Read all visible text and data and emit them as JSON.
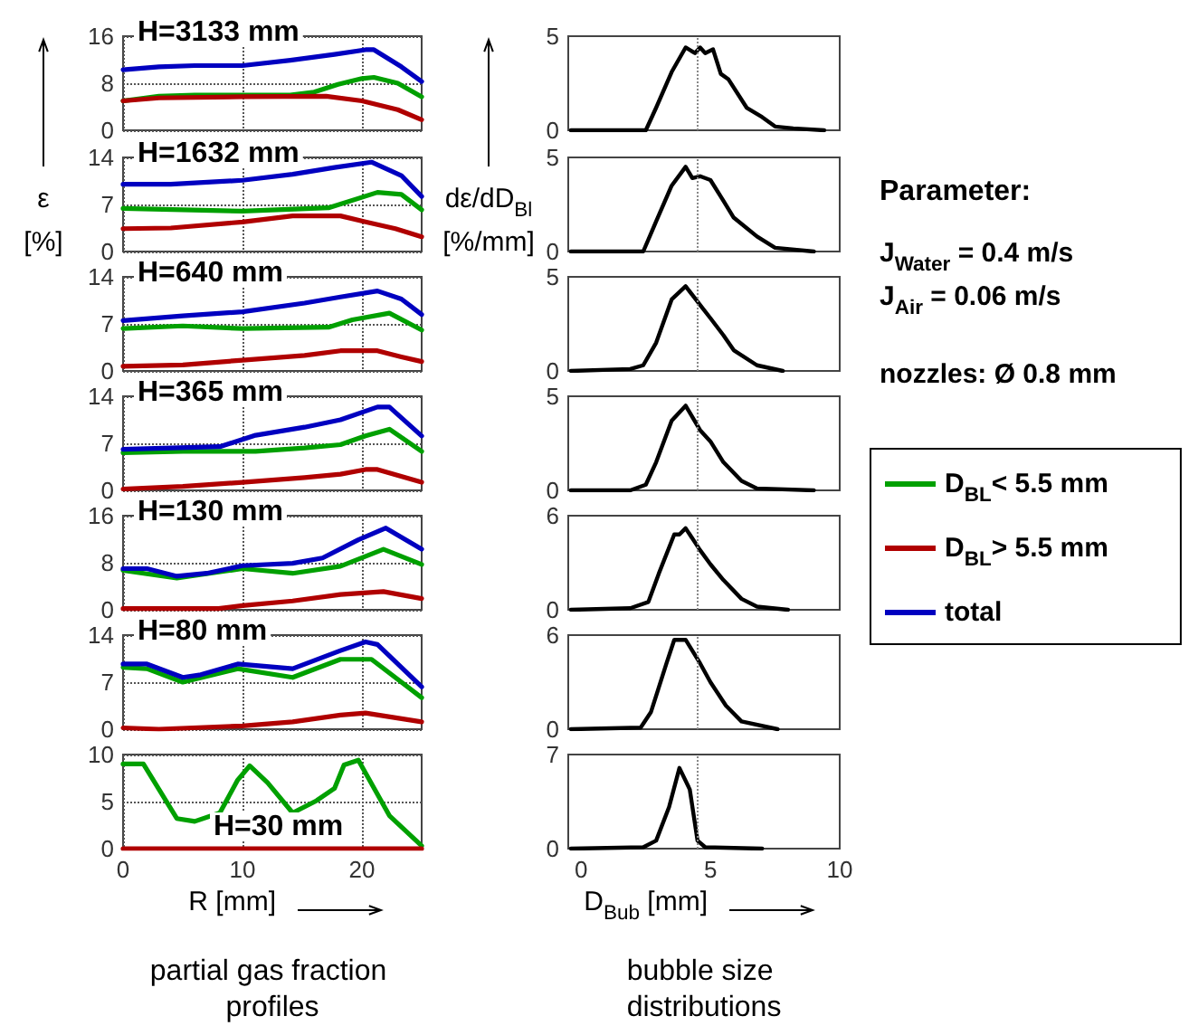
{
  "chart_data": [
    {
      "type": "line",
      "title": "H=3133 mm",
      "ylabel": "ε [%]",
      "xlim": [
        0,
        25
      ],
      "xticks": [
        0,
        10,
        20
      ],
      "ylim": [
        0,
        16
      ],
      "yticks": [
        0,
        8,
        16
      ],
      "grid": true,
      "tick_labels": "y",
      "legend": "right",
      "series": [
        {
          "name": "D$_{BL}$< 5.5 mm",
          "color": "#00a000",
          "x": [
            0,
            3,
            6,
            10,
            14,
            16,
            18,
            20,
            21,
            23,
            25
          ],
          "values": [
            5,
            5.8,
            6,
            6,
            6,
            6.5,
            7.8,
            8.8,
            9,
            8,
            5.7
          ]
        },
        {
          "name": "D$_{BL}$> 5.5 mm",
          "color": "#b00000",
          "x": [
            0,
            3,
            10,
            17,
            20,
            23,
            25
          ],
          "values": [
            5,
            5.5,
            5.7,
            5.8,
            5,
            3.5,
            1.8
          ]
        },
        {
          "name": "total",
          "color": "#0000c0",
          "x": [
            0,
            3,
            6,
            10,
            14,
            17.7,
            20.3,
            21,
            23.3,
            25
          ],
          "values": [
            10.3,
            10.8,
            11,
            11,
            11.9,
            12.9,
            13.7,
            13.7,
            10.8,
            8.3
          ]
        }
      ]
    },
    {
      "type": "line",
      "title": "H=1632 mm",
      "xlim": [
        0,
        25
      ],
      "xticks": [
        0,
        10,
        20
      ],
      "ylim": [
        0,
        14
      ],
      "yticks": [
        0,
        7,
        14
      ],
      "grid": true,
      "tick_labels": "y",
      "series": [
        {
          "name": "D$_{BL}$< 5.5 mm",
          "color": "#00a000",
          "x": [
            0,
            10,
            17.2,
            21.3,
            23.3,
            25
          ],
          "values": [
            6.4,
            6,
            6.5,
            8.8,
            8.5,
            6.2
          ]
        },
        {
          "name": "D$_{BL}$> 5.5 mm",
          "color": "#b00000",
          "x": [
            0,
            4,
            10,
            14.2,
            18.2,
            20.3,
            22.8,
            25
          ],
          "values": [
            3.4,
            3.5,
            4.4,
            5.3,
            5.3,
            4.4,
            3.4,
            2.2
          ]
        },
        {
          "name": "total",
          "color": "#0000c0",
          "x": [
            0,
            4,
            10,
            14.2,
            17.7,
            20.8,
            23.3,
            25
          ],
          "values": [
            10,
            10,
            10.6,
            11.5,
            12.5,
            13.3,
            11.3,
            8.2
          ]
        }
      ]
    },
    {
      "type": "line",
      "title": "H=640 mm",
      "xlim": [
        0,
        25
      ],
      "xticks": [
        0,
        10,
        20
      ],
      "ylim": [
        0,
        14
      ],
      "yticks": [
        0,
        7,
        14
      ],
      "grid": true,
      "tick_labels": "y",
      "series": [
        {
          "name": "D$_{BL}$< 5.5 mm",
          "color": "#00a000",
          "x": [
            0,
            5,
            10,
            17.2,
            19.2,
            22.3,
            25
          ],
          "values": [
            6.3,
            6.7,
            6.3,
            6.5,
            7.6,
            8.6,
            6.1
          ]
        },
        {
          "name": "D$_{BL}$> 5.5 mm",
          "color": "#b00000",
          "x": [
            0,
            5,
            10,
            15.2,
            18.2,
            21.3,
            23.3,
            25
          ],
          "values": [
            0.7,
            0.9,
            1.6,
            2.3,
            3,
            3,
            2.1,
            1.4
          ]
        },
        {
          "name": "total",
          "color": "#0000c0",
          "x": [
            0,
            5,
            10,
            15.2,
            18.2,
            21.3,
            23.3,
            25
          ],
          "values": [
            7.5,
            8.2,
            8.8,
            10.1,
            11,
            11.9,
            10.7,
            8.4
          ]
        }
      ]
    },
    {
      "type": "line",
      "title": "H=365 mm",
      "xlim": [
        0,
        25
      ],
      "xticks": [
        0,
        10,
        20
      ],
      "ylim": [
        0,
        14
      ],
      "yticks": [
        0,
        7,
        14
      ],
      "grid": true,
      "tick_labels": "y",
      "series": [
        {
          "name": "D$_{BL}$< 5.5 mm",
          "color": "#00a000",
          "x": [
            0,
            5,
            11.1,
            15.2,
            18.2,
            20.3,
            22.3,
            25
          ],
          "values": [
            5.6,
            5.8,
            5.8,
            6.3,
            6.8,
            8.1,
            9.1,
            5.8
          ]
        },
        {
          "name": "D$_{BL}$> 5.5 mm",
          "color": "#b00000",
          "x": [
            0,
            5,
            10,
            15.2,
            18.2,
            20.3,
            21.3,
            25
          ],
          "values": [
            0.2,
            0.6,
            1.2,
            1.9,
            2.4,
            3.1,
            3.1,
            1.2
          ]
        },
        {
          "name": "total",
          "color": "#0000c0",
          "x": [
            0,
            8.1,
            11.1,
            15.2,
            18.2,
            21.3,
            22.3,
            25
          ],
          "values": [
            6.1,
            6.5,
            8.2,
            9.4,
            10.5,
            12.4,
            12.4,
            8.1
          ]
        }
      ]
    },
    {
      "type": "line",
      "title": "H=130 mm",
      "xlim": [
        0,
        25
      ],
      "xticks": [
        0,
        10,
        20
      ],
      "ylim": [
        0,
        16
      ],
      "yticks": [
        0,
        8,
        16
      ],
      "grid": true,
      "tick_labels": "y",
      "series": [
        {
          "name": "D$_{BL}$< 5.5 mm",
          "color": "#00a000",
          "x": [
            0,
            4.5,
            10,
            14.2,
            18.2,
            21.8,
            25
          ],
          "values": [
            6.7,
            5.4,
            7,
            6.2,
            7.4,
            10.3,
            7.7
          ]
        },
        {
          "name": "D$_{BL}$> 5.5 mm",
          "color": "#b00000",
          "x": [
            0,
            8,
            10,
            14.2,
            18.2,
            21.8,
            25
          ],
          "values": [
            0.2,
            0.2,
            0.7,
            1.5,
            2.6,
            3.1,
            1.9
          ]
        },
        {
          "name": "total",
          "color": "#0000c0",
          "x": [
            0,
            2,
            4.5,
            7,
            10,
            14.2,
            16.7,
            19.7,
            22,
            25
          ],
          "values": [
            7,
            7,
            5.7,
            6.2,
            7.5,
            7.9,
            8.8,
            11.9,
            13.9,
            10.3
          ]
        }
      ]
    },
    {
      "type": "line",
      "title": "H=80 mm",
      "xlim": [
        0,
        25
      ],
      "xticks": [
        0,
        10,
        20
      ],
      "ylim": [
        0,
        14
      ],
      "yticks": [
        0,
        7,
        14
      ],
      "grid": true,
      "tick_labels": "y",
      "series": [
        {
          "name": "D$_{BL}$< 5.5 mm",
          "color": "#00a000",
          "x": [
            0,
            2,
            5,
            9.6,
            14.2,
            18.2,
            20.8,
            25
          ],
          "values": [
            9.2,
            9,
            7,
            9,
            7.7,
            10.4,
            10.4,
            4.7
          ]
        },
        {
          "name": "D$_{BL}$> 5.5 mm",
          "color": "#b00000",
          "x": [
            0,
            3,
            10,
            14.2,
            18.2,
            20.3,
            25
          ],
          "values": [
            0.2,
            0,
            0.5,
            1.1,
            2.1,
            2.4,
            1.1
          ]
        },
        {
          "name": "total",
          "color": "#0000c0",
          "x": [
            0,
            2,
            5,
            6.5,
            9.6,
            14.2,
            18.2,
            20.3,
            21.3,
            25
          ],
          "values": [
            9.7,
            9.7,
            7.7,
            8.1,
            9.7,
            9,
            11.7,
            13,
            12.6,
            6.3
          ]
        }
      ]
    },
    {
      "type": "line",
      "title": "H=30 mm",
      "xlabel": "R [mm]",
      "annotations": [
        "partial gas fraction profiles"
      ],
      "xlim": [
        0,
        25
      ],
      "xticks": [
        0,
        10,
        20
      ],
      "ylim": [
        0,
        10
      ],
      "yticks": [
        0,
        5,
        10
      ],
      "grid": true,
      "series": [
        {
          "name": "D$_{BL}$< 5.5 mm",
          "color": "#00a000",
          "x": [
            0,
            1.7,
            4.5,
            6,
            8.1,
            9.6,
            10.6,
            12.1,
            14.2,
            16.2,
            17.7,
            18.5,
            19.7,
            22.3,
            25
          ],
          "values": [
            9,
            9,
            3.2,
            2.9,
            3.8,
            7.3,
            8.8,
            7,
            3.8,
            5.1,
            6.4,
            8.9,
            9.4,
            3.5,
            0.3
          ]
        },
        {
          "name": "D$_{BL}$> 5.5 mm",
          "color": "#b00000",
          "x": [
            0,
            25
          ],
          "values": [
            0,
            0
          ]
        }
      ]
    },
    {
      "type": "line",
      "ylabel": "dε/dD$_{Bl}$ [%/mm]",
      "xlim": [
        -0.5,
        10
      ],
      "xticks": [
        0,
        5,
        10
      ],
      "ylim": [
        0,
        5
      ],
      "yticks": [
        0,
        5
      ],
      "tick_labels": "y",
      "ref_lines": [
        {
          "axis": "x",
          "value": 4.5,
          "color": "#888888",
          "line_style": "dotted"
        }
      ],
      "series": [
        {
          "color": "#000000",
          "x": [
            -0.4,
            2.5,
            2.9,
            3.5,
            4.04,
            4.4,
            4.6,
            4.8,
            5.1,
            5.4,
            5.7,
            6.4,
            7,
            7.5,
            8.2,
            9.4
          ],
          "values": [
            0,
            0,
            1.2,
            3.1,
            4.4,
            4.1,
            4.4,
            4.1,
            4.3,
            3,
            2.7,
            1.2,
            0.7,
            0.2,
            0.1,
            0
          ]
        }
      ]
    },
    {
      "type": "line",
      "xlim": [
        -0.5,
        10
      ],
      "xticks": [
        0,
        5,
        10
      ],
      "ylim": [
        0,
        5
      ],
      "yticks": [
        0,
        5
      ],
      "tick_labels": "y",
      "ref_lines": [
        {
          "axis": "x",
          "value": 4.5,
          "color": "#888888",
          "line_style": "dotted"
        }
      ],
      "series": [
        {
          "color": "#000000",
          "x": [
            -0.4,
            2.4,
            2.9,
            3.5,
            4.04,
            4.3,
            4.6,
            5,
            5.5,
            5.9,
            6.8,
            7.5,
            9
          ],
          "values": [
            0,
            0,
            1.6,
            3.5,
            4.5,
            3.9,
            4,
            3.8,
            2.7,
            1.8,
            0.8,
            0.2,
            0
          ]
        }
      ]
    },
    {
      "type": "line",
      "xlim": [
        -0.5,
        10
      ],
      "xticks": [
        0,
        5,
        10
      ],
      "ylim": [
        0,
        5
      ],
      "yticks": [
        0,
        5
      ],
      "tick_labels": "y",
      "ref_lines": [
        {
          "axis": "x",
          "value": 4.5,
          "color": "#888888",
          "line_style": "dotted"
        }
      ],
      "series": [
        {
          "color": "#000000",
          "x": [
            -0.4,
            1.9,
            2.4,
            2.9,
            3.5,
            4.04,
            4.6,
            5,
            5.5,
            5.9,
            6.8,
            7.8
          ],
          "values": [
            0,
            0.1,
            0.3,
            1.5,
            3.8,
            4.5,
            3.5,
            2.8,
            1.9,
            1.1,
            0.3,
            0
          ]
        }
      ]
    },
    {
      "type": "line",
      "xlim": [
        -0.5,
        10
      ],
      "xticks": [
        0,
        5,
        10
      ],
      "ylim": [
        0,
        5
      ],
      "yticks": [
        0,
        5
      ],
      "tick_labels": "y",
      "ref_lines": [
        {
          "axis": "x",
          "value": 4.5,
          "color": "#888888",
          "line_style": "dotted"
        }
      ],
      "series": [
        {
          "color": "#000000",
          "x": [
            -0.4,
            1.9,
            2.5,
            2.9,
            3.5,
            4.04,
            4.6,
            5,
            5.5,
            6.2,
            6.8,
            9
          ],
          "values": [
            0,
            0,
            0.3,
            1.5,
            3.7,
            4.5,
            3.2,
            2.6,
            1.5,
            0.5,
            0.1,
            0
          ]
        }
      ]
    },
    {
      "type": "line",
      "xlim": [
        -0.5,
        10
      ],
      "xticks": [
        0,
        5,
        10
      ],
      "ylim": [
        0,
        6
      ],
      "yticks": [
        0,
        6
      ],
      "tick_labels": "y",
      "ref_lines": [
        {
          "axis": "x",
          "value": 4.5,
          "color": "#888888",
          "line_style": "dotted"
        }
      ],
      "series": [
        {
          "color": "#000000",
          "x": [
            -0.4,
            1.9,
            2.6,
            3,
            3.6,
            3.8,
            4.04,
            4.6,
            5,
            5.5,
            6.2,
            6.8,
            8
          ],
          "values": [
            0,
            0.1,
            0.5,
            2.3,
            4.8,
            4.8,
            5.2,
            3.8,
            2.9,
            1.9,
            0.7,
            0.2,
            0
          ]
        }
      ]
    },
    {
      "type": "line",
      "xlim": [
        -0.5,
        10
      ],
      "xticks": [
        0,
        5,
        10
      ],
      "ylim": [
        0,
        6
      ],
      "yticks": [
        0,
        6
      ],
      "tick_labels": "y",
      "ref_lines": [
        {
          "axis": "x",
          "value": 4.5,
          "color": "#888888",
          "line_style": "dotted"
        }
      ],
      "series": [
        {
          "color": "#000000",
          "x": [
            -0.4,
            2.3,
            2.7,
            3.3,
            3.6,
            4.04,
            4.6,
            5,
            5.6,
            6.2,
            7.6
          ],
          "values": [
            0,
            0.1,
            1.1,
            4.2,
            5.7,
            5.7,
            4.2,
            3,
            1.5,
            0.5,
            0
          ]
        }
      ]
    },
    {
      "type": "line",
      "xlabel": "D$_{Bub}$ [mm]",
      "annotations": [
        "bubble size distributions"
      ],
      "xlim": [
        -0.5,
        10
      ],
      "xticks": [
        0,
        5,
        10
      ],
      "ylim": [
        0,
        7
      ],
      "yticks": [
        0,
        7
      ],
      "ref_lines": [
        {
          "axis": "x",
          "value": 4.5,
          "color": "#888888",
          "line_style": "dotted"
        }
      ],
      "series": [
        {
          "color": "#000000",
          "x": [
            -0.4,
            2.4,
            2.9,
            3.4,
            3.8,
            4.2,
            4.5,
            4.8,
            7
          ],
          "values": [
            0,
            0.1,
            0.6,
            3.1,
            6,
            4.4,
            0.6,
            0.1,
            0
          ]
        }
      ]
    },
    {
      "type": "other",
      "title": "Parameter:",
      "annotations": [
        "J$_{Water}$ = 0.4 m/s",
        "J$_{Air}$ = 0.06 m/s",
        "nozzles: Ø 0.8 mm"
      ]
    }
  ]
}
